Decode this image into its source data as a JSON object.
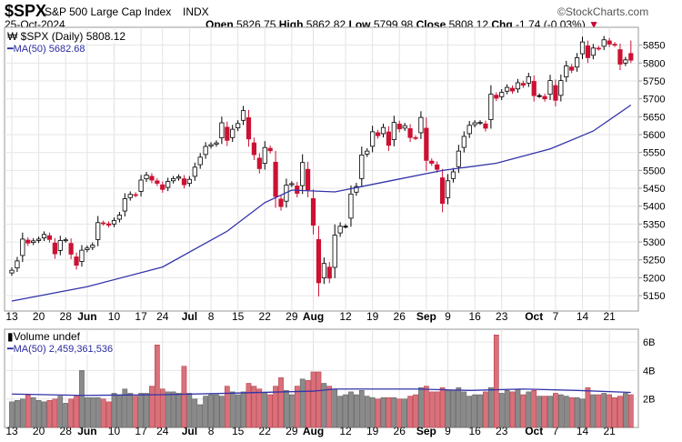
{
  "header": {
    "symbol": "$SPX",
    "name": "S&P 500 Large Cap Index",
    "exchange": "INDX",
    "brand": "©StockCharts.com",
    "date": "25-Oct-2024",
    "open_label": "Open",
    "open": "5826.75",
    "high_label": "High",
    "high": "5862.82",
    "low_label": "Low",
    "low": "5799.98",
    "close_label": "Close",
    "close": "5808.12",
    "chg_label": "Chg",
    "chg": "-1.74 (-0.03%)"
  },
  "chart_data": [
    {
      "type": "candlestick",
      "title": "$SPX (Daily) 5808.12",
      "legend_ma": "MA(50) 5682.68",
      "ylim": [
        5107,
        5900
      ],
      "yticks": [
        5150,
        5200,
        5250,
        5300,
        5350,
        5400,
        5450,
        5500,
        5550,
        5600,
        5650,
        5700,
        5750,
        5800,
        5850
      ],
      "xticks": [
        {
          "i": 0,
          "l": "13"
        },
        {
          "i": 5,
          "l": "20"
        },
        {
          "i": 10,
          "l": "28"
        },
        {
          "i": 14,
          "l": "Jun",
          "b": 1
        },
        {
          "i": 19,
          "l": "10"
        },
        {
          "i": 24,
          "l": "17"
        },
        {
          "i": 28,
          "l": "24"
        },
        {
          "i": 33,
          "l": "Jul",
          "b": 1
        },
        {
          "i": 37,
          "l": "8"
        },
        {
          "i": 42,
          "l": "15"
        },
        {
          "i": 47,
          "l": "22"
        },
        {
          "i": 52,
          "l": "29"
        },
        {
          "i": 56,
          "l": "Aug",
          "b": 1
        },
        {
          "i": 62,
          "l": "12"
        },
        {
          "i": 67,
          "l": "19"
        },
        {
          "i": 72,
          "l": "26"
        },
        {
          "i": 77,
          "l": "Sep",
          "b": 1
        },
        {
          "i": 81,
          "l": "9"
        },
        {
          "i": 86,
          "l": "16"
        },
        {
          "i": 91,
          "l": "23"
        },
        {
          "i": 97,
          "l": "Oct",
          "b": 1
        },
        {
          "i": 101,
          "l": "7"
        },
        {
          "i": 106,
          "l": "14"
        },
        {
          "i": 111,
          "l": "21"
        }
      ],
      "close": [
        5221,
        5247,
        5308,
        5297,
        5303,
        5308,
        5321,
        5307,
        5267,
        5304,
        5306,
        5266,
        5235,
        5277,
        5283,
        5291,
        5354,
        5352,
        5347,
        5360,
        5375,
        5421,
        5433,
        5431,
        5473,
        5487,
        5473,
        5464,
        5447,
        5469,
        5477,
        5482,
        5460,
        5475,
        5509,
        5537,
        5567,
        5572,
        5577,
        5633,
        5584,
        5615,
        5631,
        5667,
        5588,
        5544,
        5505,
        5564,
        5555,
        5427,
        5399,
        5459,
        5463,
        5436,
        5522,
        5446,
        5347,
        5186,
        5240,
        5199,
        5319,
        5344,
        5344,
        5434,
        5455,
        5543,
        5554,
        5608,
        5597,
        5620,
        5570,
        5634,
        5616,
        5625,
        5592,
        5591,
        5648,
        5528,
        5520,
        5503,
        5408,
        5471,
        5496,
        5554,
        5595,
        5626,
        5633,
        5634,
        5618,
        5713,
        5702,
        5718,
        5732,
        5722,
        5745,
        5738,
        5762,
        5709,
        5709,
        5700,
        5751,
        5696,
        5751,
        5792,
        5780,
        5815,
        5859,
        5815,
        5842,
        5841,
        5865,
        5853,
        5851,
        5797,
        5809,
        5808.12
      ],
      "ma50": [
        [
          0,
          5135
        ],
        [
          14,
          5175
        ],
        [
          28,
          5230
        ],
        [
          40,
          5330
        ],
        [
          47,
          5410
        ],
        [
          52,
          5445
        ],
        [
          60,
          5440
        ],
        [
          70,
          5470
        ],
        [
          80,
          5500
        ],
        [
          90,
          5520
        ],
        [
          100,
          5560
        ],
        [
          108,
          5610
        ],
        [
          115,
          5682.68
        ]
      ]
    },
    {
      "type": "bar",
      "title": "Volume undef",
      "legend_ma": "MA(50) 2,459,361,536",
      "ylim": [
        0,
        6.9
      ],
      "yticks": [
        {
          "v": 2,
          "l": "2B"
        },
        {
          "v": 4,
          "l": "4B"
        },
        {
          "v": 6,
          "l": "6B"
        }
      ],
      "values_billion": [
        1.8,
        1.9,
        2.0,
        2.3,
        2.1,
        1.9,
        1.8,
        1.9,
        2.0,
        2.2,
        1.7,
        2.0,
        2.2,
        4.0,
        2.1,
        2.1,
        2.1,
        2.0,
        1.8,
        2.4,
        2.3,
        2.7,
        2.4,
        2.2,
        2.4,
        2.4,
        2.9,
        5.8,
        2.7,
        2.5,
        2.5,
        2.4,
        4.3,
        2.4,
        2.0,
        1.6,
        2.2,
        2.3,
        2.3,
        2.2,
        2.9,
        2.5,
        2.3,
        2.5,
        3.1,
        2.9,
        2.7,
        2.4,
        2.3,
        2.9,
        3.5,
        2.6,
        2.3,
        2.9,
        3.4,
        3.3,
        3.9,
        3.9,
        3.1,
        2.9,
        2.7,
        2.2,
        2.3,
        2.5,
        2.3,
        2.6,
        2.2,
        2.1,
        2.0,
        2.1,
        2.1,
        2.1,
        2.0,
        2.0,
        2.2,
        2.3,
        2.8,
        2.9,
        2.5,
        2.5,
        2.8,
        2.6,
        2.6,
        2.8,
        2.5,
        2.2,
        2.3,
        2.3,
        2.5,
        2.8,
        6.5,
        2.4,
        2.6,
        2.5,
        2.7,
        2.3,
        2.5,
        2.6,
        2.2,
        2.2,
        2.2,
        2.4,
        2.3,
        2.2,
        2.1,
        2.1,
        2.0,
        2.8,
        2.3,
        2.3,
        2.4,
        2.3,
        2.1,
        2.2,
        2.4,
        2.3
      ],
      "ma50": [
        [
          0,
          2.35
        ],
        [
          13,
          2.25
        ],
        [
          28,
          2.3
        ],
        [
          40,
          2.4
        ],
        [
          56,
          2.55
        ],
        [
          60,
          2.7
        ],
        [
          75,
          2.7
        ],
        [
          85,
          2.6
        ],
        [
          95,
          2.7
        ],
        [
          105,
          2.6
        ],
        [
          115,
          2.46
        ]
      ]
    }
  ]
}
